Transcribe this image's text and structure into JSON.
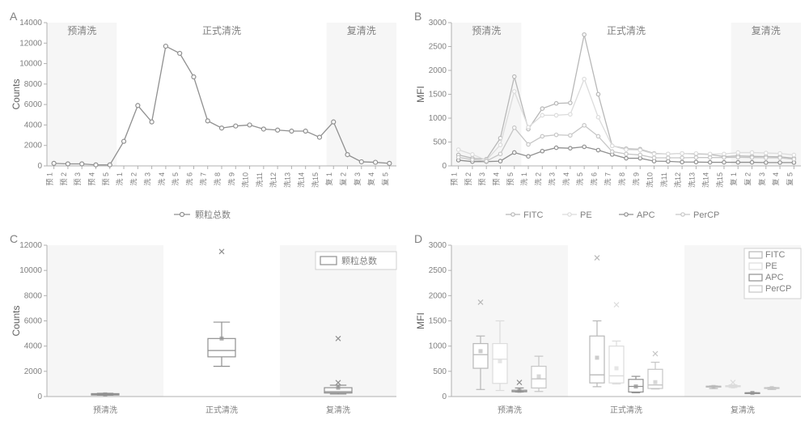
{
  "colors": {
    "fitc": "#b8b8b8",
    "pe": "#dcdcdc",
    "apc": "#909090",
    "percp": "#c6c6c6",
    "particle": "#909090",
    "band_fill": "#eeeeee",
    "axis": "#b0b0b0",
    "text": "#808080"
  },
  "phase_labels": {
    "pre": "预清洗",
    "formal": "正式清洗",
    "re": "复清洗"
  },
  "x_categories": [
    "预 1",
    "预 2",
    "预 3",
    "预 4",
    "预 5",
    "洗 1",
    "洗 2",
    "洗 3",
    "洗 4",
    "洗 5",
    "洗 6",
    "洗 7",
    "洗 8",
    "洗 9",
    "洗10",
    "洗11",
    "洗12",
    "洗13",
    "洗14",
    "洗15",
    "复 1",
    "复 2",
    "复 3",
    "复 4",
    "复 5"
  ],
  "panelA": {
    "ylabel": "Counts",
    "ylim": [
      0,
      14000
    ],
    "ytick_step": 2000,
    "legend_label": "颗粒总数",
    "series": {
      "counts": [
        250,
        200,
        200,
        100,
        100,
        2400,
        5900,
        4300,
        11700,
        11000,
        8700,
        4400,
        3700,
        3900,
        4000,
        3600,
        3500,
        3400,
        3400,
        2800,
        4300,
        1100,
        400,
        350,
        250
      ]
    },
    "phase_bounds": {
      "pre": [
        0,
        5
      ],
      "formal": [
        5,
        20
      ],
      "re": [
        20,
        25
      ]
    }
  },
  "panelB": {
    "ylabel": "MFI",
    "ylim": [
      0,
      3000
    ],
    "ytick_step": 500,
    "legends": [
      "FITC",
      "PE",
      "APC",
      "PerCP"
    ],
    "series": {
      "FITC": [
        230,
        160,
        140,
        580,
        1870,
        770,
        1200,
        1310,
        1320,
        2750,
        1500,
        420,
        360,
        350,
        260,
        250,
        260,
        250,
        240,
        195,
        210,
        200,
        195,
        190,
        160
      ],
      "PE": [
        340,
        240,
        120,
        440,
        1560,
        810,
        1060,
        1060,
        1080,
        1820,
        1020,
        420,
        340,
        330,
        250,
        250,
        260,
        260,
        250,
        250,
        280,
        280,
        270,
        260,
        230
      ],
      "APC": [
        120,
        90,
        90,
        100,
        280,
        200,
        310,
        380,
        370,
        400,
        330,
        240,
        160,
        160,
        100,
        95,
        80,
        80,
        75,
        75,
        75,
        75,
        70,
        70,
        70
      ],
      "PerCP": [
        180,
        130,
        100,
        250,
        800,
        450,
        620,
        650,
        640,
        850,
        620,
        300,
        250,
        230,
        170,
        170,
        170,
        175,
        175,
        175,
        180,
        175,
        170,
        170,
        140
      ]
    },
    "phase_bounds": {
      "pre": [
        0,
        5
      ],
      "formal": [
        5,
        20
      ],
      "re": [
        20,
        25
      ]
    }
  },
  "panelC": {
    "ylabel": "Counts",
    "ylim": [
      0,
      12000
    ],
    "ytick_step": 2000,
    "legend_label": "颗粒总数",
    "categories": [
      "预清洗",
      "正式清洗",
      "复清洗"
    ],
    "boxes": [
      {
        "min": 100,
        "q1": 120,
        "median": 200,
        "q3": 230,
        "max": 260,
        "mean": 170,
        "outliers": []
      },
      {
        "min": 2400,
        "q1": 3150,
        "median": 3650,
        "q3": 4600,
        "max": 5900,
        "mean": 4600,
        "outliers": [
          11500
        ]
      },
      {
        "min": 200,
        "q1": 280,
        "median": 380,
        "q3": 700,
        "max": 900,
        "mean": 700,
        "outliers": [
          4600,
          1100
        ]
      }
    ]
  },
  "panelD": {
    "ylabel": "MFI",
    "ylim": [
      0,
      3000
    ],
    "ytick_step": 500,
    "legends": [
      "FITC",
      "PE",
      "APC",
      "PerCP"
    ],
    "categories": [
      "预清洗",
      "正式清洗",
      "复清洗"
    ],
    "groups": [
      {
        "FITC": {
          "min": 140,
          "q1": 560,
          "median": 830,
          "q3": 1050,
          "max": 1200,
          "mean": 900,
          "outliers": [
            1870
          ]
        },
        "PE": {
          "min": 120,
          "q1": 260,
          "median": 740,
          "q3": 1050,
          "max": 1500,
          "mean": 700,
          "outliers": []
        },
        "APC": {
          "min": 90,
          "q1": 95,
          "median": 100,
          "q3": 125,
          "max": 170,
          "mean": 115,
          "outliers": [
            280
          ]
        },
        "PerCP": {
          "min": 100,
          "q1": 170,
          "median": 350,
          "q3": 600,
          "max": 800,
          "mean": 400,
          "outliers": []
        }
      },
      {
        "FITC": {
          "min": 195,
          "q1": 270,
          "median": 430,
          "q3": 1200,
          "max": 1500,
          "mean": 770,
          "outliers": [
            2750
          ]
        },
        "PE": {
          "min": 250,
          "q1": 270,
          "median": 410,
          "q3": 1000,
          "max": 1100,
          "mean": 560,
          "outliers": [
            1820
          ]
        },
        "APC": {
          "min": 75,
          "q1": 90,
          "median": 200,
          "q3": 340,
          "max": 400,
          "mean": 200,
          "outliers": []
        },
        "PerCP": {
          "min": 150,
          "q1": 160,
          "median": 230,
          "q3": 540,
          "max": 680,
          "mean": 285,
          "outliers": [
            850
          ]
        }
      },
      {
        "FITC": {
          "min": 160,
          "q1": 190,
          "median": 195,
          "q3": 205,
          "max": 210,
          "mean": 190,
          "outliers": []
        },
        "PE": {
          "min": 180,
          "q1": 195,
          "median": 205,
          "q3": 215,
          "max": 230,
          "mean": 200,
          "outliers": [
            280
          ]
        },
        "APC": {
          "min": 70,
          "q1": 70,
          "median": 72,
          "q3": 75,
          "max": 76,
          "mean": 72,
          "outliers": []
        },
        "PerCP": {
          "min": 140,
          "q1": 170,
          "median": 172,
          "q3": 176,
          "max": 180,
          "mean": 170,
          "outliers": []
        }
      }
    ]
  }
}
